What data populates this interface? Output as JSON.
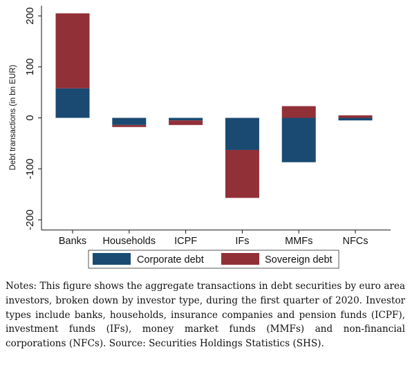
{
  "chart_data": {
    "type": "bar",
    "stacked": true,
    "categories": [
      "Banks",
      "Households",
      "ICPF",
      "IFs",
      "MMFs",
      "NFCs"
    ],
    "series": [
      {
        "name": "Corporate debt",
        "color": "#1a4a72",
        "values": [
          58,
          -14,
          -5,
          -63,
          -87,
          -5
        ]
      },
      {
        "name": "Sovereign debt",
        "color": "#923037",
        "values": [
          147,
          -4,
          -9,
          -94,
          23,
          5
        ]
      }
    ],
    "title": "",
    "xlabel": "",
    "ylabel": "Debt transactions (in bn EUR)",
    "ylim": [
      -220,
      220
    ],
    "yticks": [
      -200,
      -100,
      0,
      100,
      200
    ],
    "ytick_labels": [
      "-200",
      "-100",
      "0",
      "100",
      "200"
    ],
    "grid": false,
    "legend_position": "bottom"
  },
  "notes": "Notes: This figure shows the aggregate transactions in debt securities by euro area investors, broken down by investor type, during the first quarter of 2020. Investor types include banks, households, insurance companies and pension funds (ICPF), investment funds (IFs), money market funds (MMFs) and non-financial corporations (NFCs). Source: Securities Holdings Statistics (SHS)."
}
